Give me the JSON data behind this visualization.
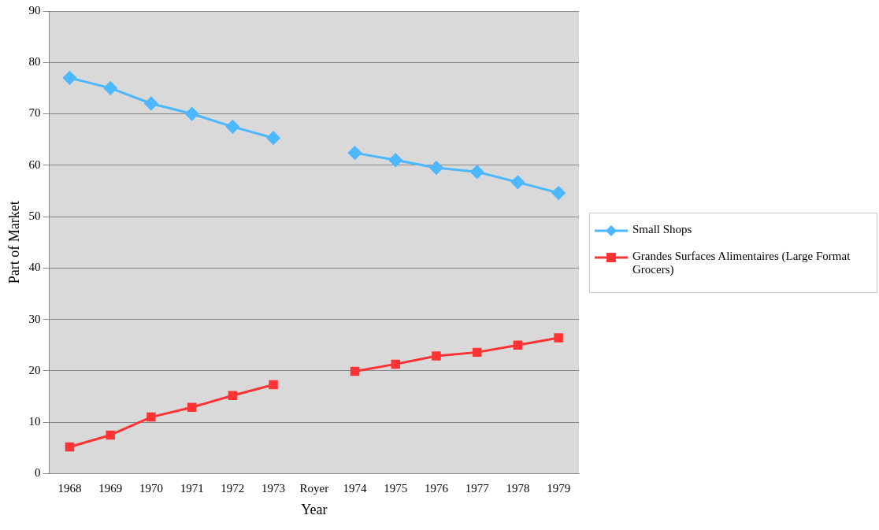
{
  "chart_data": {
    "type": "line",
    "xlabel": "Year",
    "ylabel": "Part of Market",
    "categories": [
      "1968",
      "1969",
      "1970",
      "1971",
      "1972",
      "1973",
      "Royer",
      "1974",
      "1975",
      "1976",
      "1977",
      "1978",
      "1979"
    ],
    "series": [
      {
        "name": "Small Shops",
        "color": "#4db8ff",
        "marker": "diamond",
        "values": [
          77,
          75,
          72,
          70,
          67.5,
          65.3,
          null,
          62.4,
          61,
          59.5,
          58.7,
          56.7,
          54.6
        ]
      },
      {
        "name": "Grandes Surfaces Alimentaires (Large Format Grocers)",
        "color": "#ff3333",
        "marker": "square",
        "values": [
          5.2,
          7.5,
          11,
          12.9,
          15.2,
          17.3,
          null,
          19.9,
          21.3,
          22.9,
          23.6,
          25,
          26.4
        ]
      }
    ],
    "ylim": [
      0,
      90
    ],
    "yticks": [
      0,
      10,
      20,
      30,
      40,
      50,
      60,
      70,
      80,
      90
    ],
    "grid": "y",
    "legend": "right",
    "line_style": "solid"
  }
}
